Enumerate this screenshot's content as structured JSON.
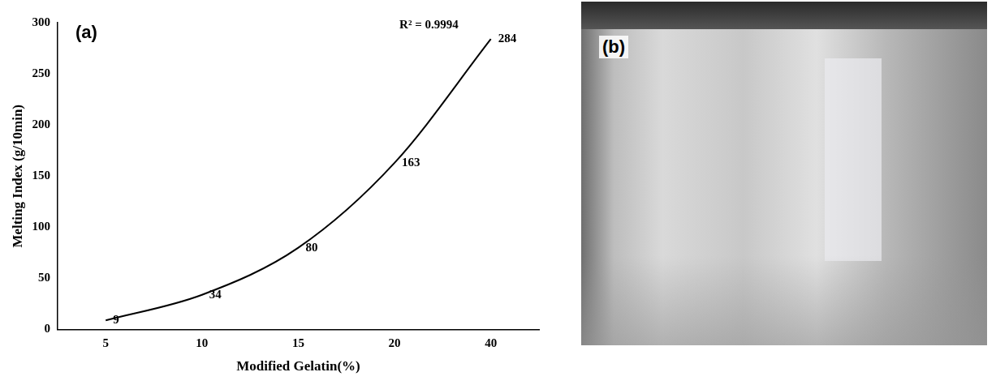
{
  "chart_data": {
    "type": "line",
    "panel_label": "(a)",
    "annotation": "R² = 0.9994",
    "x_label": "Modified Gelatin(%)",
    "y_label": "Melting Index (g/10min)",
    "categories": [
      "5",
      "10",
      "15",
      "20",
      "40"
    ],
    "values": [
      9,
      34,
      80,
      163,
      284
    ],
    "color": "#000000",
    "ylim": [
      0,
      300
    ],
    "yticks": [
      0,
      50,
      100,
      150,
      200,
      250,
      300
    ],
    "grid": false,
    "data_labels": true,
    "marker": "none",
    "line_style": "solid"
  },
  "photo": {
    "panel_label": "(b)"
  }
}
